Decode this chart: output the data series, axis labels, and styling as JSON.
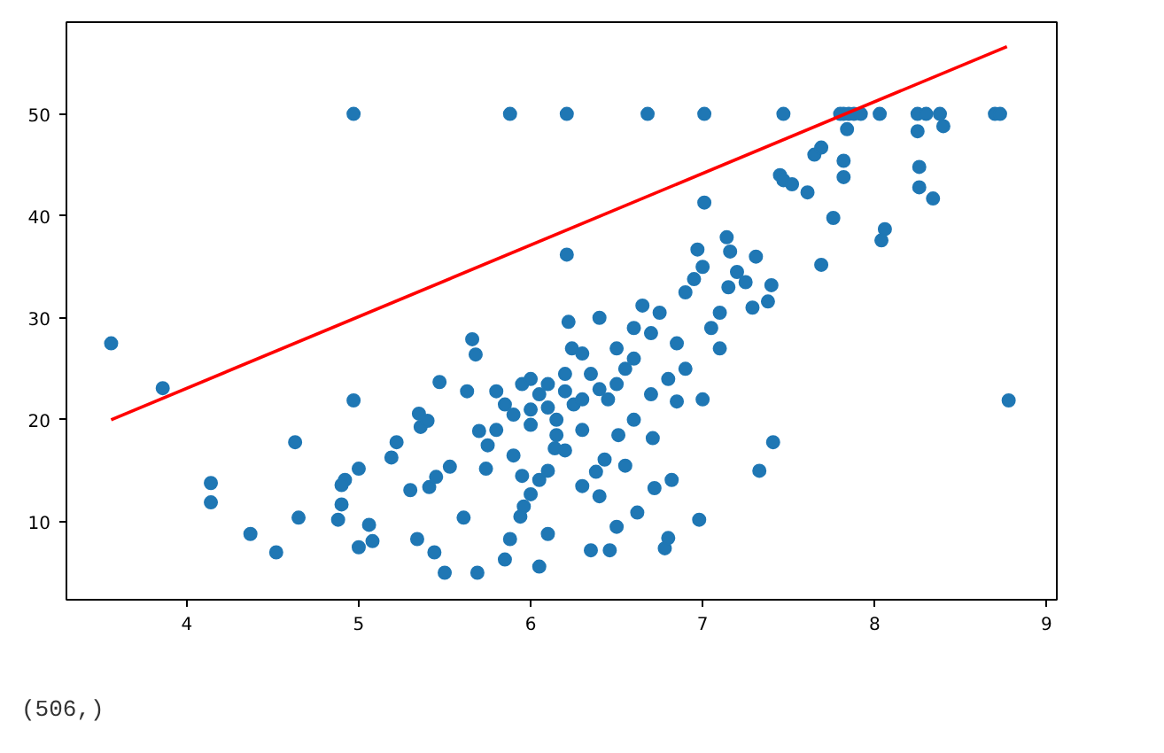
{
  "chart_data": {
    "type": "scatter",
    "grid": false,
    "xlim": [
      3.3,
      9.06
    ],
    "ylim": [
      2.35,
      59.0
    ],
    "xticks": [
      4,
      5,
      6,
      7,
      8,
      9
    ],
    "yticks": [
      10,
      20,
      30,
      40,
      50
    ],
    "annotations": [
      "(506,)"
    ],
    "series": [
      {
        "marker": "circle",
        "color": "#1f77b4",
        "x": [
          4.97,
          5.88,
          6.21,
          6.68,
          7.01,
          7.47,
          7.8,
          7.82,
          7.85,
          7.88,
          7.92,
          8.03,
          8.25,
          8.3,
          8.38,
          8.7,
          8.73,
          7.84,
          8.25,
          8.4,
          7.82,
          7.82,
          8.26,
          8.26,
          8.34,
          7.45,
          7.47,
          7.52,
          7.61,
          7.65,
          7.69,
          8.04,
          8.06,
          7.76,
          7.69,
          7.01,
          7.4,
          7.38,
          7.29,
          7.31,
          7.14,
          7.16,
          3.56,
          3.86,
          4.14,
          4.14,
          4.37,
          4.52,
          4.63,
          4.65,
          4.88,
          4.9,
          4.92,
          4.9,
          4.97,
          5.0,
          5.0,
          5.06,
          5.08,
          5.19,
          5.22,
          5.3,
          5.34,
          5.36,
          5.4,
          5.35,
          5.41,
          5.44,
          5.45,
          5.47,
          5.5,
          5.53,
          5.61,
          5.63,
          5.66,
          5.68,
          5.69,
          5.7,
          5.74,
          5.8,
          5.85,
          5.88,
          5.94,
          5.96,
          6.0,
          6.05,
          6.05,
          6.1,
          6.14,
          6.21,
          6.22,
          6.24,
          6.35,
          6.38,
          6.43,
          6.46,
          6.5,
          6.51,
          6.62,
          6.72,
          6.78,
          6.8,
          6.82,
          6.71,
          6.98,
          7.33,
          7.41,
          8.78,
          5.8,
          5.9,
          6.0,
          6.0,
          6.05,
          6.1,
          6.15,
          6.2,
          6.25,
          6.3,
          6.35,
          6.4,
          6.45,
          6.5,
          6.55,
          6.6,
          6.6,
          6.65,
          6.7,
          6.75,
          6.8,
          6.85,
          6.9,
          6.95,
          6.97,
          7.0,
          7.05,
          7.1,
          7.15,
          7.2,
          7.25,
          6.3,
          6.2,
          6.1,
          6.3,
          6.4,
          6.55,
          6.6,
          5.9,
          5.75,
          5.95,
          6.5,
          6.4,
          6.3,
          6.15,
          5.95,
          5.85,
          6.7,
          6.9,
          7.0,
          6.85,
          7.1,
          6.2,
          6.1,
          6.0
        ],
        "values": [
          50,
          50,
          50,
          50,
          50,
          50,
          50,
          50,
          50,
          50,
          50,
          50,
          50,
          50,
          50,
          50,
          50,
          48.5,
          48.3,
          48.8,
          45.4,
          43.8,
          44.8,
          42.8,
          41.7,
          44.0,
          43.5,
          43.1,
          42.3,
          46.0,
          46.7,
          37.6,
          38.7,
          39.8,
          35.2,
          41.3,
          33.2,
          31.6,
          31.0,
          36.0,
          37.9,
          36.5,
          27.5,
          23.1,
          13.8,
          11.9,
          8.8,
          7.0,
          17.8,
          10.4,
          10.2,
          11.7,
          14.1,
          13.6,
          21.9,
          7.5,
          15.2,
          9.7,
          8.1,
          16.3,
          17.8,
          13.1,
          8.3,
          19.3,
          19.9,
          20.6,
          13.4,
          7.0,
          14.4,
          23.7,
          5.0,
          15.4,
          10.4,
          22.8,
          27.9,
          26.4,
          5.0,
          18.9,
          15.2,
          22.8,
          6.3,
          8.3,
          10.5,
          11.5,
          12.7,
          14.1,
          5.6,
          8.8,
          17.2,
          36.2,
          29.6,
          27.0,
          7.2,
          14.9,
          16.1,
          7.2,
          9.5,
          18.5,
          10.9,
          13.3,
          7.4,
          8.4,
          14.1,
          18.2,
          10.2,
          15.0,
          17.8,
          21.9,
          19.0,
          20.5,
          21.0,
          19.5,
          22.5,
          23.5,
          20.0,
          24.5,
          21.5,
          22.0,
          24.5,
          23.0,
          22.0,
          23.5,
          25.0,
          26.0,
          29.0,
          31.2,
          28.5,
          30.5,
          24.0,
          27.5,
          32.5,
          33.8,
          36.7,
          35.0,
          29.0,
          30.5,
          33.0,
          34.5,
          33.5,
          19.0,
          17.0,
          15.0,
          13.5,
          12.5,
          15.5,
          20.0,
          16.5,
          17.5,
          14.5,
          27.0,
          30.0,
          26.5,
          18.5,
          23.5,
          21.5,
          22.5,
          25.0,
          22.0,
          21.8,
          27.0,
          22.8,
          21.2,
          24.0
        ]
      },
      {
        "type": "line",
        "marker": "none",
        "color": "#ff0000",
        "x": [
          3.56,
          8.77
        ],
        "values": [
          20.0,
          56.6
        ]
      }
    ]
  }
}
